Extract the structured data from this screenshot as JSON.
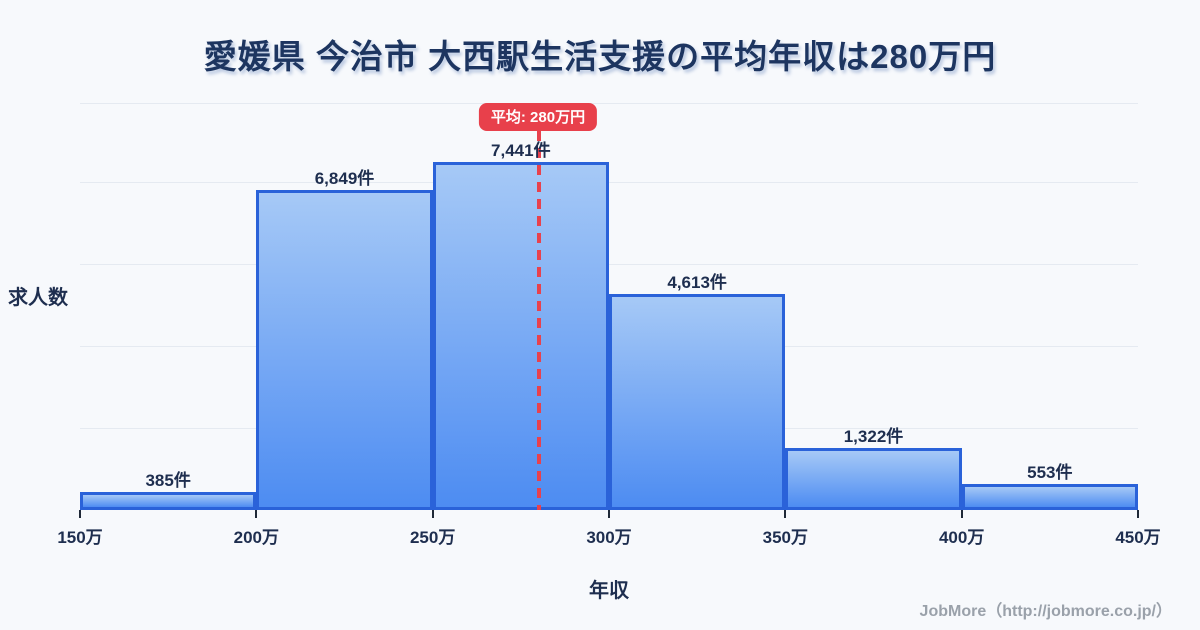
{
  "title": "愛媛県 今治市 大西駅生活支援の平均年収は280万円",
  "average": {
    "badge_label": "平均: 280万円"
  },
  "axes": {
    "y_label": "求人数",
    "x_label": "年収"
  },
  "footer": {
    "credit": "JobMore（http://jobmore.co.jp/）"
  },
  "chart_data": {
    "type": "bar",
    "subtype": "histogram",
    "title": "愛媛県 今治市 大西駅生活支援の平均年収は280万円",
    "xlabel": "年収",
    "ylabel": "求人数",
    "bin_edges_man_yen": [
      150,
      200,
      250,
      300,
      350,
      400,
      450
    ],
    "bin_edge_labels": [
      "150万",
      "200万",
      "250万",
      "300万",
      "350万",
      "400万",
      "450万"
    ],
    "values": [
      385,
      6849,
      7441,
      4613,
      1322,
      553
    ],
    "bar_labels": [
      "385件",
      "6,849件",
      "7,441件",
      "4,613件",
      "1,322件",
      "553件"
    ],
    "average_line": {
      "x_man_yen": 280,
      "label": "平均: 280万円",
      "style": "dashed",
      "color": "#e8414d"
    },
    "ylim": [
      0,
      8766
    ],
    "grid": "horizontal",
    "legend": "none",
    "colors": {
      "background": "#f7f9fc",
      "bar_fill_top": "#a6c9f6",
      "bar_fill_bottom": "#4d8cf2",
      "bar_border": "#2a62d9",
      "gridline": "#e5eaf1",
      "text_dark": "#1e2e4f",
      "title": "#1d3560",
      "average_red": "#e8404b",
      "footer_gray": "#9aa1aa"
    }
  }
}
